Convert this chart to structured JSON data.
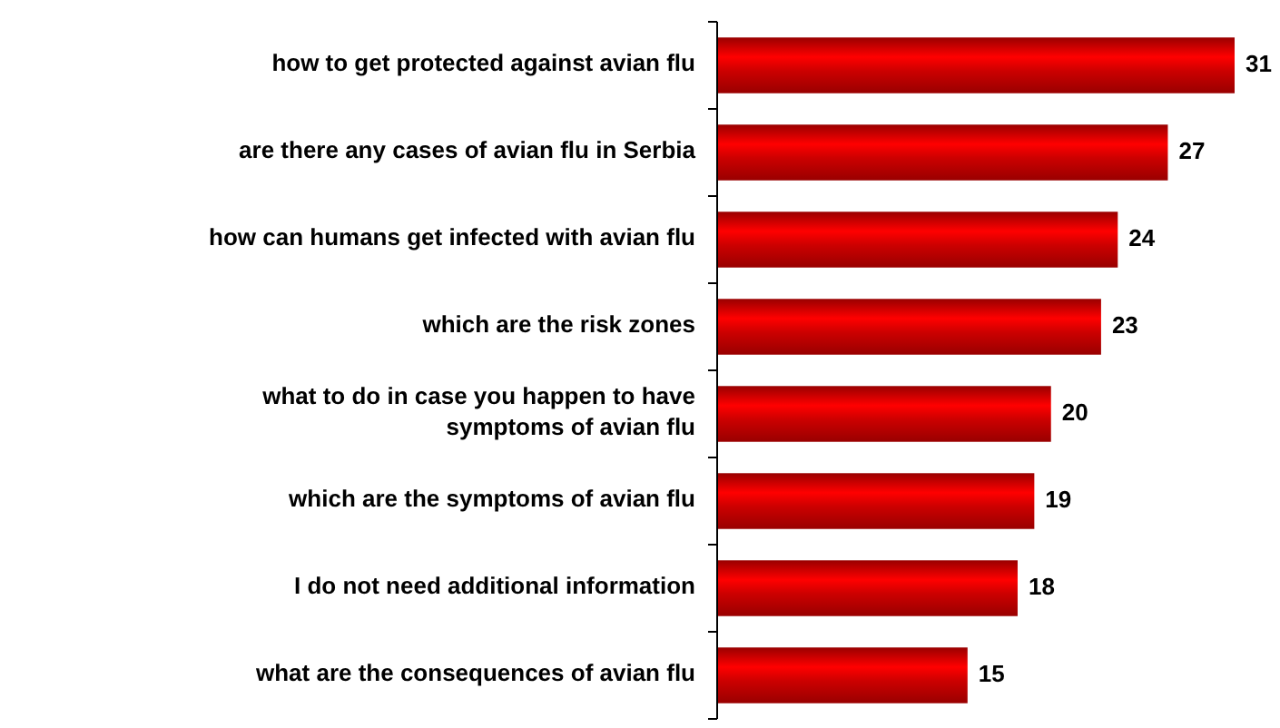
{
  "chart_data": {
    "type": "bar",
    "orientation": "horizontal",
    "categories": [
      "how to get protected against avian flu",
      "are there any cases of avian flu in Serbia",
      "how can humans get infected with avian flu",
      "which are the risk zones",
      "what to do in case you happen to have symptoms of avian flu",
      "which are the symptoms of avian flu",
      "I do not need additional information",
      "what are the consequences of avian flu"
    ],
    "values": [
      31,
      27,
      24,
      23,
      20,
      19,
      18,
      15
    ],
    "color": "#cc0000",
    "data_labels": true
  }
}
